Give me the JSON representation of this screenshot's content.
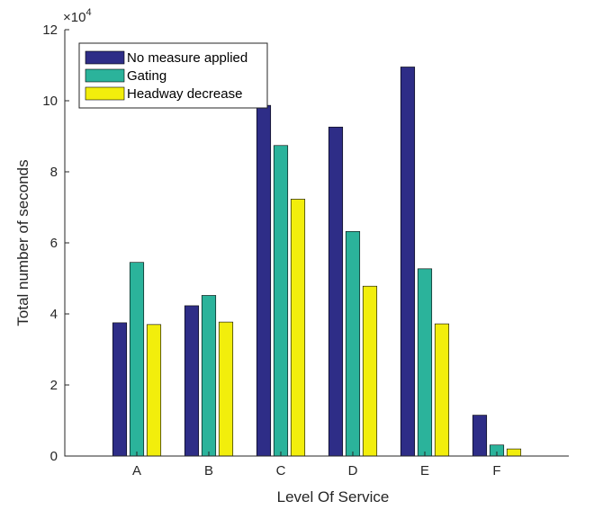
{
  "chart_data": {
    "type": "bar",
    "categories": [
      "A",
      "B",
      "C",
      "D",
      "E",
      "F"
    ],
    "series": [
      {
        "name": "No measure applied",
        "color": "#2e2d87",
        "values": [
          37500,
          42300,
          98700,
          92600,
          109500,
          11500
        ]
      },
      {
        "name": "Gating",
        "color": "#2bb39b",
        "values": [
          54500,
          45200,
          87400,
          63200,
          52700,
          3100
        ]
      },
      {
        "name": "Headway decrease",
        "color": "#f2ee0c",
        "values": [
          37000,
          37700,
          72300,
          47800,
          37200,
          2000
        ]
      }
    ],
    "xlabel": "Level Of Service",
    "ylabel": "Total number of seconds",
    "exponent_label": "×10",
    "exponent_power": "4",
    "ylim": [
      0,
      120000
    ],
    "yticks": [
      0,
      20000,
      40000,
      60000,
      80000,
      100000,
      120000
    ],
    "ytick_labels": [
      "0",
      "2",
      "4",
      "6",
      "8",
      "10",
      "12"
    ],
    "legend_position": "top-left",
    "grid": false
  }
}
